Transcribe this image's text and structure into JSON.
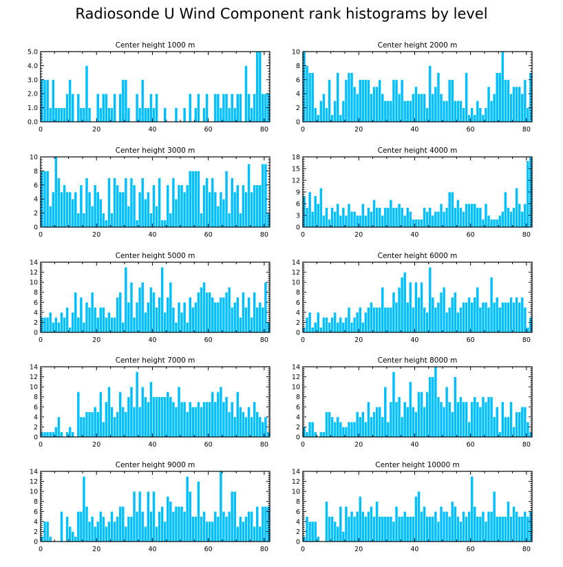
{
  "figure_title": "Radiosonde U Wind Component rank histograms by level",
  "colors": {
    "bar": "#00bfff",
    "bar_edge": "#ffffff",
    "axis": "#000000"
  },
  "chart_data": [
    {
      "type": "bar",
      "title": "Center height 1000 m",
      "xlabel": "",
      "ylabel": "",
      "xlim": [
        0,
        82
      ],
      "ylim": [
        0,
        5
      ],
      "xticks": [
        0,
        20,
        40,
        60,
        80
      ],
      "yticks": [
        0,
        1,
        2,
        3,
        4,
        5
      ],
      "ytick_labels": [
        "0.0",
        "1.0",
        "2.0",
        "3.0",
        "4.0",
        "5.0"
      ],
      "categories_start": 0,
      "values": [
        3,
        3,
        3,
        1,
        3,
        1,
        1,
        1,
        1,
        2,
        3,
        2,
        0,
        2,
        1,
        1,
        4,
        1,
        0,
        0,
        2,
        1,
        2,
        2,
        1,
        1,
        2,
        0,
        2,
        3,
        3,
        1,
        0,
        0,
        2,
        1,
        3,
        1,
        1,
        2,
        1,
        2,
        0,
        0,
        1,
        0,
        0,
        0,
        1,
        0,
        0,
        1,
        0,
        2,
        0,
        1,
        2,
        0,
        1,
        2,
        0,
        0,
        2,
        2,
        1,
        2,
        2,
        1,
        2,
        1,
        2,
        2,
        0,
        4,
        2,
        1,
        2,
        5,
        5,
        2,
        2,
        2
      ]
    },
    {
      "type": "bar",
      "title": "Center height 2000 m",
      "xlabel": "",
      "ylabel": "",
      "xlim": [
        0,
        82
      ],
      "ylim": [
        0,
        10
      ],
      "xticks": [
        0,
        20,
        40,
        60,
        80
      ],
      "yticks": [
        0,
        2,
        4,
        6,
        8,
        10
      ],
      "ytick_labels": [
        "0",
        "2",
        "4",
        "6",
        "8",
        "10"
      ],
      "categories_start": 0,
      "values": [
        10,
        8,
        7,
        7,
        2,
        1,
        3,
        4,
        2,
        6,
        1,
        3,
        7,
        1,
        3,
        6,
        7,
        7,
        5,
        4,
        6,
        6,
        6,
        6,
        4,
        5,
        5,
        6,
        4,
        3,
        3,
        3,
        6,
        6,
        4,
        6,
        3,
        3,
        3,
        4,
        5,
        4,
        4,
        4,
        2,
        8,
        4,
        5,
        7,
        4,
        3,
        3,
        6,
        6,
        3,
        3,
        3,
        2,
        7,
        1,
        2,
        1,
        3,
        2,
        1,
        2,
        5,
        3,
        4,
        7,
        7,
        10,
        6,
        6,
        4,
        5,
        5,
        5,
        4,
        6,
        2,
        7
      ]
    },
    {
      "type": "bar",
      "title": "Center height 3000 m",
      "xlabel": "",
      "ylabel": "",
      "xlim": [
        0,
        82
      ],
      "ylim": [
        0,
        10
      ],
      "xticks": [
        0,
        20,
        40,
        60,
        80
      ],
      "yticks": [
        0,
        2,
        4,
        6,
        8,
        10
      ],
      "ytick_labels": [
        "0",
        "2",
        "4",
        "6",
        "8",
        "10"
      ],
      "categories_start": 0,
      "values": [
        8,
        8,
        8,
        3,
        5,
        10,
        7,
        5,
        6,
        5,
        5,
        4,
        5,
        2,
        6,
        2,
        7,
        5,
        3,
        6,
        5,
        4,
        2,
        1,
        7,
        2,
        7,
        6,
        5,
        5,
        7,
        3,
        7,
        6,
        1,
        5,
        7,
        4,
        5,
        2,
        6,
        3,
        7,
        1,
        1,
        6,
        2,
        7,
        4,
        6,
        6,
        5,
        6,
        8,
        8,
        8,
        8,
        2,
        6,
        7,
        5,
        7,
        5,
        3,
        5,
        4,
        8,
        2,
        7,
        5,
        6,
        2,
        6,
        5,
        9,
        5,
        6,
        6,
        6,
        9,
        9,
        2
      ]
    },
    {
      "type": "bar",
      "title": "Center height 4000 m",
      "xlabel": "",
      "ylabel": "",
      "xlim": [
        0,
        82
      ],
      "ylim": [
        0,
        18
      ],
      "xticks": [
        0,
        20,
        40,
        60,
        80
      ],
      "yticks": [
        0,
        3,
        6,
        9,
        12,
        15,
        18
      ],
      "ytick_labels": [
        "0",
        "3",
        "6",
        "9",
        "12",
        "15",
        "18"
      ],
      "categories_start": 0,
      "values": [
        8,
        5,
        9,
        4,
        8,
        6,
        10,
        3,
        5,
        2,
        5,
        4,
        6,
        3,
        5,
        3,
        6,
        4,
        4,
        3,
        3,
        6,
        3,
        5,
        4,
        7,
        5,
        5,
        3,
        5,
        5,
        7,
        5,
        5,
        6,
        5,
        3,
        5,
        4,
        2,
        2,
        2,
        2,
        5,
        4,
        5,
        3,
        4,
        4,
        6,
        4,
        5,
        9,
        9,
        5,
        7,
        5,
        4,
        6,
        6,
        6,
        6,
        5,
        5,
        2,
        6,
        3,
        2,
        2,
        2,
        3,
        4,
        9,
        5,
        4,
        5,
        10,
        6,
        4,
        6,
        17,
        18
      ]
    },
    {
      "type": "bar",
      "title": "Center height 5000 m",
      "xlabel": "",
      "ylabel": "",
      "xlim": [
        0,
        82
      ],
      "ylim": [
        0,
        14
      ],
      "xticks": [
        0,
        20,
        40,
        60,
        80
      ],
      "yticks": [
        0,
        2,
        4,
        6,
        8,
        10,
        12,
        14
      ],
      "ytick_labels": [
        "0",
        "2",
        "4",
        "6",
        "8",
        "10",
        "12",
        "14"
      ],
      "categories_start": 0,
      "values": [
        3,
        3,
        3,
        4,
        2,
        3,
        2,
        4,
        3,
        5,
        1,
        4,
        8,
        3,
        7,
        2,
        6,
        5,
        8,
        5,
        3,
        5,
        5,
        3,
        4,
        3,
        3,
        7,
        8,
        2,
        13,
        6,
        10,
        3,
        6,
        9,
        10,
        4,
        6,
        9,
        8,
        5,
        7,
        13,
        4,
        7,
        10,
        5,
        2,
        6,
        4,
        6,
        2,
        7,
        5,
        6,
        8,
        9,
        10,
        8,
        8,
        7,
        6,
        6,
        7,
        7,
        8,
        9,
        5,
        6,
        7,
        3,
        8,
        5,
        7,
        3,
        8,
        5,
        6,
        5,
        10,
        2
      ]
    },
    {
      "type": "bar",
      "title": "Center height 6000 m",
      "xlabel": "",
      "ylabel": "",
      "xlim": [
        0,
        82
      ],
      "ylim": [
        0,
        14
      ],
      "xticks": [
        0,
        20,
        40,
        60,
        80
      ],
      "yticks": [
        0,
        2,
        4,
        6,
        8,
        10,
        12,
        14
      ],
      "ytick_labels": [
        "0",
        "2",
        "4",
        "6",
        "8",
        "10",
        "12",
        "14"
      ],
      "categories_start": 0,
      "values": [
        1,
        3,
        4,
        1,
        2,
        4,
        1,
        3,
        3,
        2,
        3,
        4,
        2,
        3,
        2,
        3,
        5,
        2,
        3,
        4,
        5,
        2,
        4,
        5,
        6,
        5,
        5,
        5,
        9,
        5,
        5,
        5,
        8,
        6,
        9,
        11,
        12,
        6,
        10,
        5,
        10,
        7,
        10,
        5,
        4,
        13,
        7,
        5,
        6,
        8,
        9,
        4,
        5,
        7,
        8,
        4,
        5,
        6,
        6,
        7,
        6,
        7,
        9,
        5,
        6,
        6,
        5,
        11,
        6,
        7,
        5,
        6,
        6,
        6,
        7,
        6,
        7,
        6,
        7,
        5,
        1,
        3
      ]
    },
    {
      "type": "bar",
      "title": "Center height 7000 m",
      "xlabel": "",
      "ylabel": "",
      "xlim": [
        0,
        82
      ],
      "ylim": [
        0,
        14
      ],
      "xticks": [
        0,
        20,
        40,
        60,
        80
      ],
      "yticks": [
        0,
        2,
        4,
        6,
        8,
        10,
        12,
        14
      ],
      "ytick_labels": [
        "0",
        "2",
        "4",
        "6",
        "8",
        "10",
        "12",
        "14"
      ],
      "categories_start": 0,
      "values": [
        1,
        1,
        1,
        1,
        1,
        2,
        4,
        1,
        0,
        1,
        2,
        1,
        0,
        9,
        4,
        4,
        5,
        5,
        5,
        6,
        5,
        9,
        3,
        7,
        10,
        6,
        4,
        5,
        9,
        6,
        5,
        8,
        10,
        6,
        13,
        6,
        10,
        8,
        7,
        11,
        8,
        8,
        8,
        8,
        8,
        9,
        8,
        7,
        6,
        10,
        7,
        7,
        5,
        7,
        6,
        6,
        7,
        6,
        7,
        7,
        7,
        9,
        7,
        9,
        10,
        7,
        8,
        5,
        7,
        4,
        9,
        6,
        5,
        4,
        6,
        4,
        7,
        5,
        4,
        3,
        4,
        1
      ]
    },
    {
      "type": "bar",
      "title": "Center height 8000 m",
      "xlabel": "",
      "ylabel": "",
      "xlim": [
        0,
        82
      ],
      "ylim": [
        0,
        14
      ],
      "xticks": [
        0,
        20,
        40,
        60,
        80
      ],
      "yticks": [
        0,
        2,
        4,
        6,
        8,
        10,
        12,
        14
      ],
      "ytick_labels": [
        "0",
        "2",
        "4",
        "6",
        "8",
        "10",
        "12",
        "14"
      ],
      "categories_start": 0,
      "values": [
        2,
        1,
        3,
        3,
        1,
        0,
        1,
        1,
        5,
        5,
        4,
        3,
        4,
        3,
        2,
        2,
        3,
        3,
        3,
        5,
        4,
        5,
        3,
        7,
        4,
        5,
        6,
        6,
        4,
        10,
        3,
        7,
        13,
        7,
        8,
        4,
        7,
        6,
        11,
        6,
        5,
        9,
        9,
        6,
        9,
        12,
        12,
        14,
        8,
        7,
        6,
        10,
        7,
        5,
        12,
        7,
        8,
        7,
        7,
        3,
        7,
        8,
        7,
        6,
        8,
        7,
        8,
        8,
        4,
        6,
        1,
        7,
        4,
        4,
        7,
        2,
        5,
        5,
        6,
        6,
        3,
        1
      ]
    },
    {
      "type": "bar",
      "title": "Center height 9000 m",
      "xlabel": "",
      "ylabel": "",
      "xlim": [
        0,
        82
      ],
      "ylim": [
        0,
        14
      ],
      "xticks": [
        0,
        20,
        40,
        60,
        80
      ],
      "yticks": [
        0,
        2,
        4,
        6,
        8,
        10,
        12,
        14
      ],
      "ytick_labels": [
        "0",
        "2",
        "4",
        "6",
        "8",
        "10",
        "12",
        "14"
      ],
      "categories_start": 0,
      "values": [
        1,
        4,
        4,
        1,
        0,
        0,
        0,
        6,
        0,
        5,
        3,
        2,
        1,
        6,
        6,
        13,
        7,
        4,
        5,
        3,
        4,
        6,
        5,
        3,
        4,
        6,
        4,
        5,
        7,
        7,
        3,
        5,
        5,
        10,
        6,
        10,
        6,
        3,
        10,
        6,
        10,
        3,
        6,
        7,
        4,
        9,
        8,
        6,
        7,
        7,
        7,
        6,
        13,
        10,
        5,
        5,
        12,
        5,
        6,
        4,
        4,
        4,
        6,
        5,
        14,
        6,
        5,
        6,
        10,
        10,
        3,
        5,
        4,
        5,
        6,
        6,
        3,
        7,
        3,
        7,
        7,
        7
      ]
    },
    {
      "type": "bar",
      "title": "Center height 10000 m",
      "xlabel": "",
      "ylabel": "",
      "xlim": [
        0,
        82
      ],
      "ylim": [
        0,
        14
      ],
      "xticks": [
        0,
        20,
        40,
        60,
        80
      ],
      "yticks": [
        0,
        2,
        4,
        6,
        8,
        10,
        12,
        14
      ],
      "ytick_labels": [
        "0",
        "2",
        "4",
        "6",
        "8",
        "10",
        "12",
        "14"
      ],
      "categories_start": 0,
      "values": [
        1,
        5,
        4,
        4,
        4,
        1,
        0,
        0,
        8,
        5,
        5,
        4,
        3,
        7,
        2,
        7,
        5,
        6,
        5,
        6,
        9,
        6,
        5,
        6,
        7,
        5,
        8,
        5,
        5,
        5,
        5,
        5,
        4,
        7,
        5,
        5,
        6,
        5,
        5,
        5,
        9,
        10,
        6,
        7,
        5,
        5,
        5,
        6,
        4,
        7,
        6,
        6,
        5,
        8,
        7,
        5,
        4,
        6,
        5,
        6,
        13,
        7,
        5,
        5,
        6,
        4,
        6,
        6,
        10,
        5,
        5,
        5,
        5,
        8,
        5,
        7,
        6,
        5,
        5,
        6,
        5,
        6
      ]
    }
  ]
}
